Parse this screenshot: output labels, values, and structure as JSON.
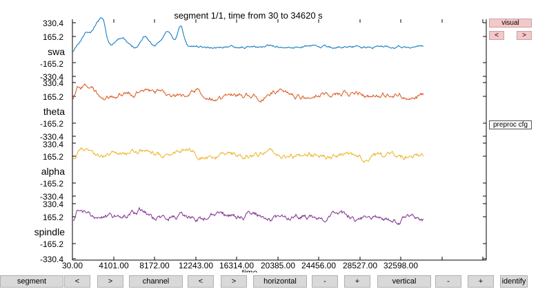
{
  "title": "segment 1/1, time from 30 to 34620 s",
  "channels": [
    {
      "name": "swa",
      "color": "#0072bd",
      "ticks": [
        "330.4",
        "165.2",
        "-165.2",
        "-330.4"
      ]
    },
    {
      "name": "theta",
      "color": "#d95319",
      "ticks": [
        "330.4",
        "165.2",
        "-165.2",
        "-330.4"
      ]
    },
    {
      "name": "alpha",
      "color": "#edb120",
      "ticks": [
        "330.4",
        "165.2",
        "-165.2",
        "-330.4"
      ]
    },
    {
      "name": "spindle",
      "color": "#7e2f8e",
      "ticks": [
        "330.4",
        "165.2",
        "-165.2",
        "-330.4"
      ]
    }
  ],
  "xaxis": {
    "label": "time",
    "ticks": [
      "30.00",
      "4101.00",
      "8172.00",
      "12243.00",
      "16314.00",
      "20385.00",
      "24456.00",
      "28527.00",
      "32598.00"
    ]
  },
  "right_panel": {
    "visual": "visual",
    "prev": "<",
    "next": ">",
    "preproc": "preproc cfg"
  },
  "toolbar": {
    "segment": "segment",
    "seg_prev": "<",
    "seg_next": ">",
    "channel": "channel",
    "ch_prev": "<",
    "ch_next": ">",
    "horizontal": "horizontal",
    "h_minus": "-",
    "h_plus": "+",
    "vertical": "vertical",
    "v_minus": "-",
    "v_plus": "+",
    "identify": "identify"
  }
}
